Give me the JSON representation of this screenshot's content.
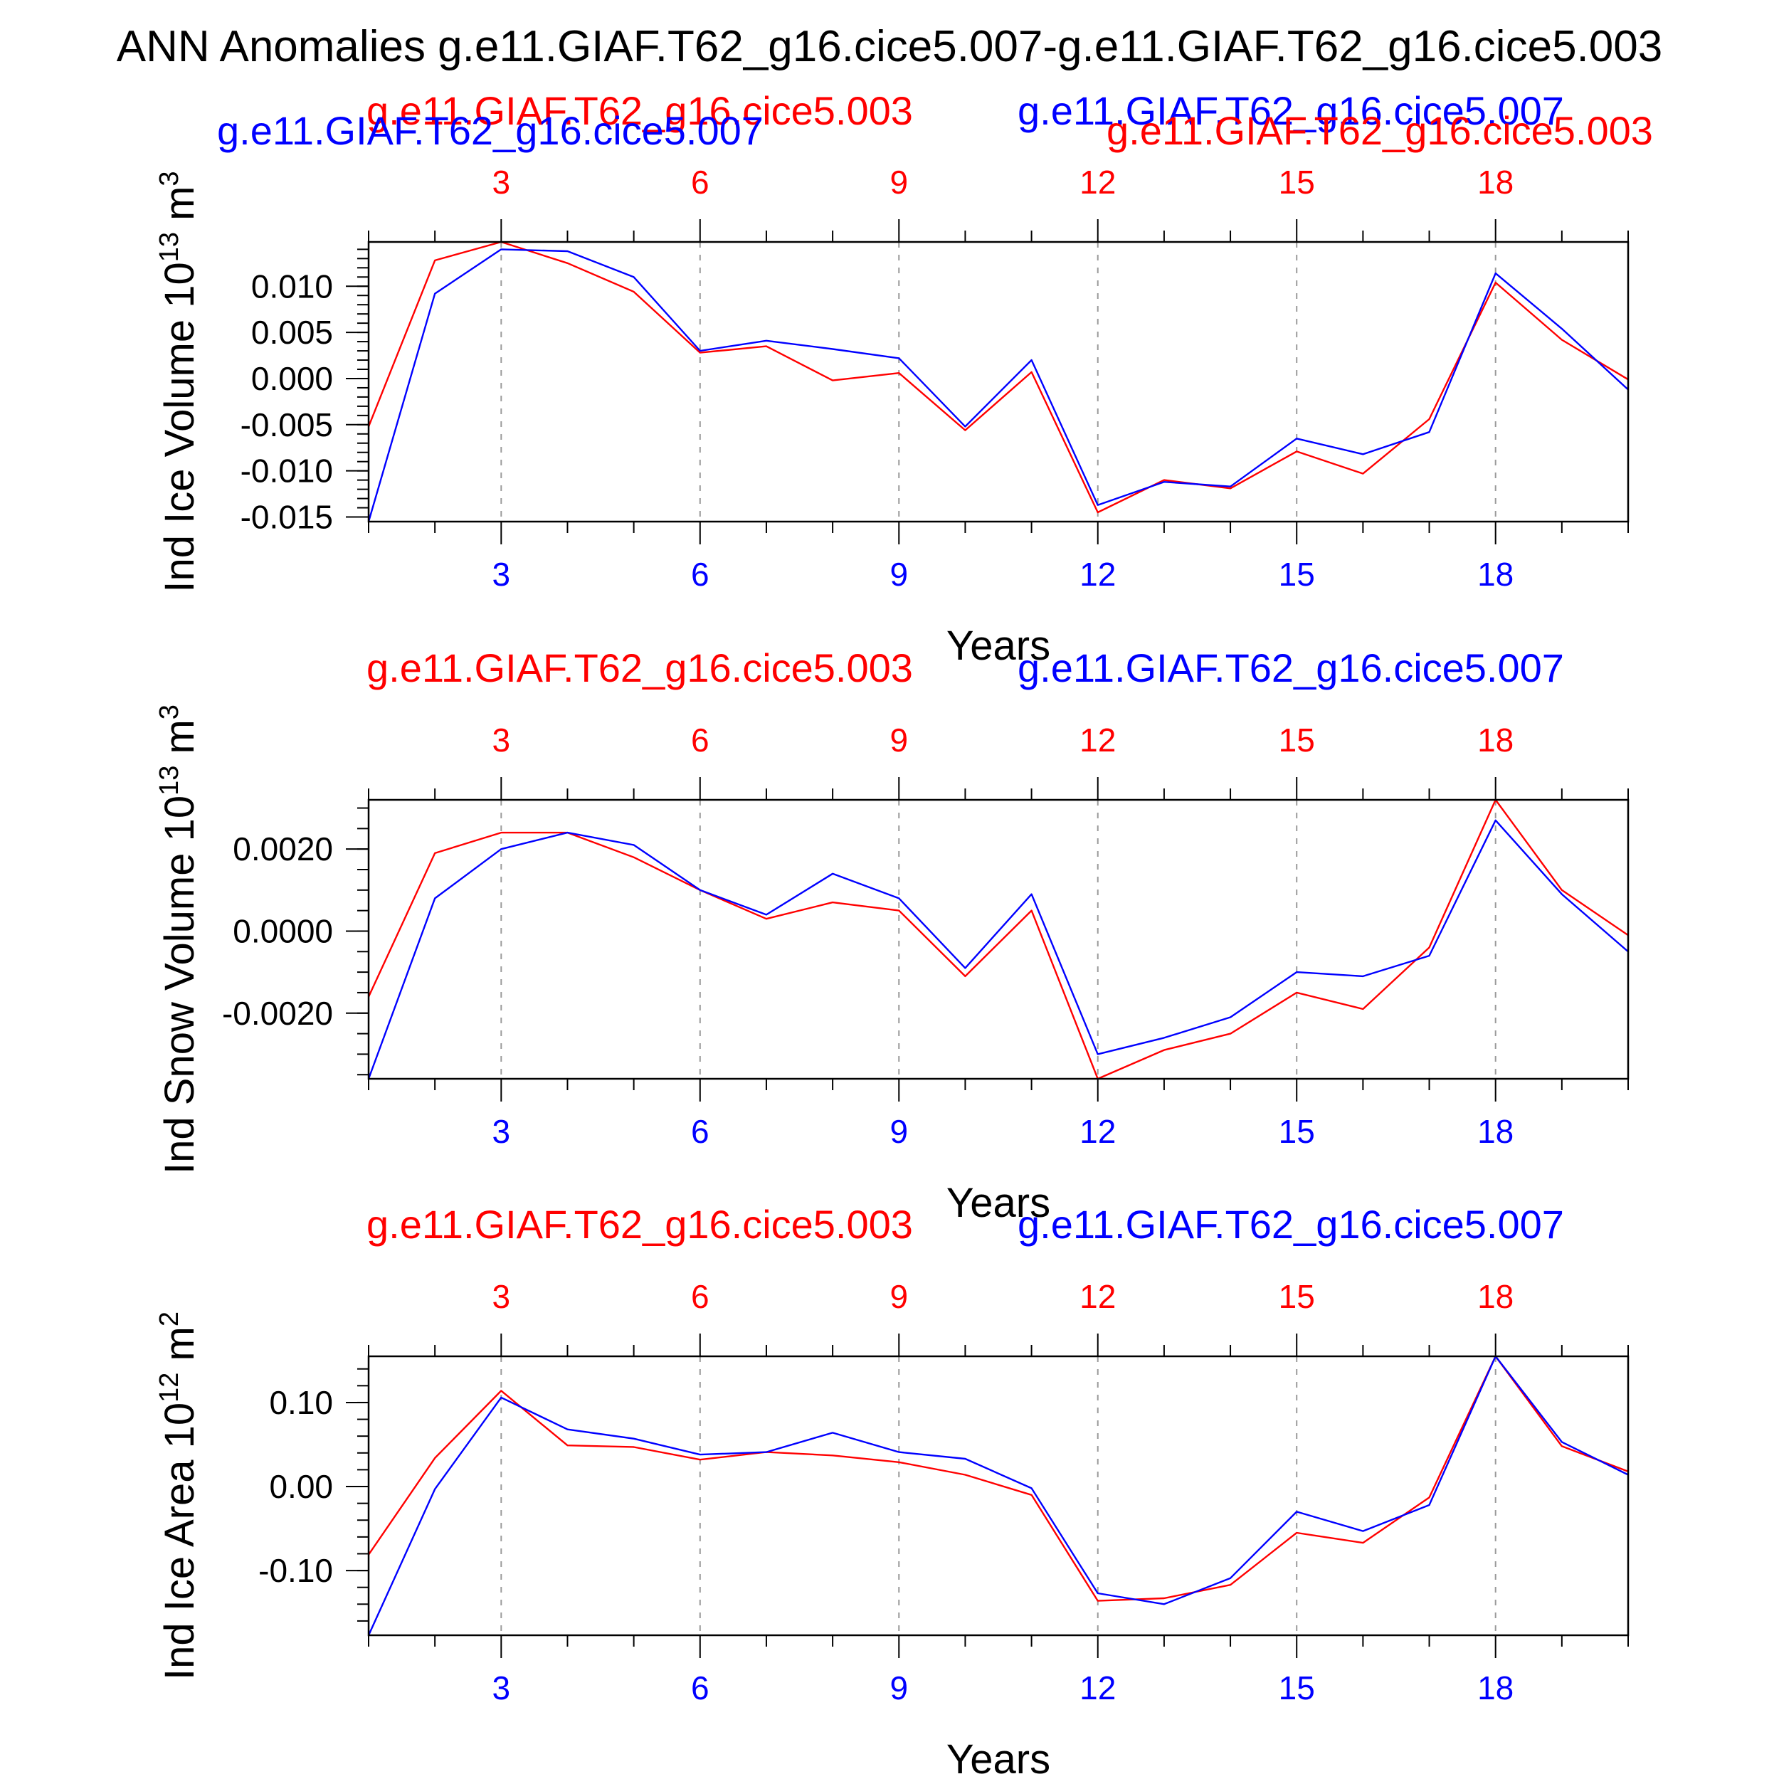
{
  "title": "ANN Anomalies g.e11.GIAF.T62_g16.cice5.007-g.e11.GIAF.T62_g16.cice5.003",
  "colors": {
    "case_003": "#ff0000",
    "case_007": "#0000ff",
    "text": "#000000"
  },
  "chart_data": [
    {
      "type": "line",
      "ylabel": "Ind Ice Volume 10",
      "ylabel_exp": "13",
      "ylabel_unit": " m",
      "ylabel_unit_exp": "3",
      "xlabel": "Years",
      "top_labels": {
        "red_left": "g.e11.GIAF.T62_g16.cice5.003",
        "blue_right": "g.e11.GIAF.T62_g16.cice5.007",
        "blue_left": "g.e11.GIAF.T62_g16.cice5.007",
        "red_right": "g.e11.GIAF.T62_g16.cice5.003"
      },
      "xlim": [
        1,
        20
      ],
      "ylim": [
        -0.0155,
        0.0148
      ],
      "xticks": [
        "3",
        "6",
        "9",
        "12",
        "15",
        "18"
      ],
      "yticks": [
        "0.010",
        "0.005",
        "0.000",
        "-0.005",
        "-0.010",
        "-0.015"
      ],
      "ytick_values": [
        0.01,
        0.005,
        0.0,
        -0.005,
        -0.01,
        -0.015
      ],
      "minor_step": 0.001,
      "x": [
        1,
        2,
        3,
        4,
        5,
        6,
        7,
        8,
        9,
        10,
        11,
        12,
        13,
        14,
        15,
        16,
        17,
        18,
        19,
        20
      ],
      "series": [
        {
          "color": "#ff0000",
          "values": [
            -0.0052,
            0.0128,
            0.0148,
            0.0125,
            0.0094,
            0.0028,
            0.0035,
            -0.0002,
            0.0006,
            -0.0056,
            0.0007,
            -0.0145,
            -0.011,
            -0.0119,
            -0.0079,
            -0.0103,
            -0.0044,
            0.0104,
            0.0042,
            -0.0001
          ]
        },
        {
          "color": "#0000ff",
          "values": [
            -0.0155,
            0.0092,
            0.014,
            0.0138,
            0.011,
            0.003,
            0.0041,
            0.0032,
            0.0022,
            -0.0052,
            0.002,
            -0.0137,
            -0.0112,
            -0.0117,
            -0.0065,
            -0.0082,
            -0.0058,
            0.0114,
            0.0054,
            -0.0012
          ]
        }
      ]
    },
    {
      "type": "line",
      "ylabel": "Ind Snow Volume 10",
      "ylabel_exp": "13",
      "ylabel_unit": " m",
      "ylabel_unit_exp": "3",
      "xlabel": "Years",
      "top_labels": {
        "red_left": "g.e11.GIAF.T62_g16.cice5.003",
        "blue_right": "g.e11.GIAF.T62_g16.cice5.007"
      },
      "xlim": [
        1,
        20
      ],
      "ylim": [
        -0.0036,
        0.0032
      ],
      "xticks": [
        "3",
        "6",
        "9",
        "12",
        "15",
        "18"
      ],
      "yticks": [
        "0.0020",
        "0.0000",
        "-0.0020"
      ],
      "ytick_values": [
        0.002,
        0.0,
        -0.002
      ],
      "minor_step": 0.0005,
      "x": [
        1,
        2,
        3,
        4,
        5,
        6,
        7,
        8,
        9,
        10,
        11,
        12,
        13,
        14,
        15,
        16,
        17,
        18,
        19,
        20
      ],
      "series": [
        {
          "color": "#ff0000",
          "values": [
            -0.0016,
            0.0019,
            0.0024,
            0.0024,
            0.0018,
            0.001,
            0.0003,
            0.0007,
            0.0005,
            -0.0011,
            0.0005,
            -0.0036,
            -0.0029,
            -0.0025,
            -0.0015,
            -0.0019,
            -0.0004,
            0.0032,
            0.001,
            -0.0001
          ]
        },
        {
          "color": "#0000ff",
          "values": [
            -0.0036,
            0.0008,
            0.002,
            0.0024,
            0.0021,
            0.001,
            0.0004,
            0.0014,
            0.0008,
            -0.0009,
            0.0009,
            -0.003,
            -0.0026,
            -0.0021,
            -0.001,
            -0.0011,
            -0.0006,
            0.0027,
            0.0009,
            -0.0005
          ]
        }
      ]
    },
    {
      "type": "line",
      "ylabel": "Ind Ice Area 10",
      "ylabel_exp": "12",
      "ylabel_unit": " m",
      "ylabel_unit_exp": "2",
      "xlabel": "Years",
      "top_labels": {
        "red_left": "g.e11.GIAF.T62_g16.cice5.003",
        "blue_right": "g.e11.GIAF.T62_g16.cice5.007"
      },
      "xlim": [
        1,
        20
      ],
      "ylim": [
        -0.177,
        0.155
      ],
      "xticks": [
        "3",
        "6",
        "9",
        "12",
        "15",
        "18"
      ],
      "yticks": [
        "0.10",
        "0.00",
        "-0.10"
      ],
      "ytick_values": [
        0.1,
        0.0,
        -0.1
      ],
      "minor_step": 0.02,
      "x": [
        1,
        2,
        3,
        4,
        5,
        6,
        7,
        8,
        9,
        10,
        11,
        12,
        13,
        14,
        15,
        16,
        17,
        18,
        19,
        20
      ],
      "series": [
        {
          "color": "#ff0000",
          "values": [
            -0.081,
            0.034,
            0.114,
            0.049,
            0.047,
            0.032,
            0.041,
            0.037,
            0.029,
            0.014,
            -0.01,
            -0.136,
            -0.133,
            -0.117,
            -0.055,
            -0.067,
            -0.013,
            0.155,
            0.048,
            0.018
          ]
        },
        {
          "color": "#0000ff",
          "values": [
            -0.177,
            -0.003,
            0.106,
            0.068,
            0.057,
            0.038,
            0.041,
            0.064,
            0.041,
            0.033,
            -0.002,
            -0.127,
            -0.14,
            -0.109,
            -0.03,
            -0.053,
            -0.022,
            0.155,
            0.053,
            0.014
          ]
        }
      ]
    }
  ]
}
